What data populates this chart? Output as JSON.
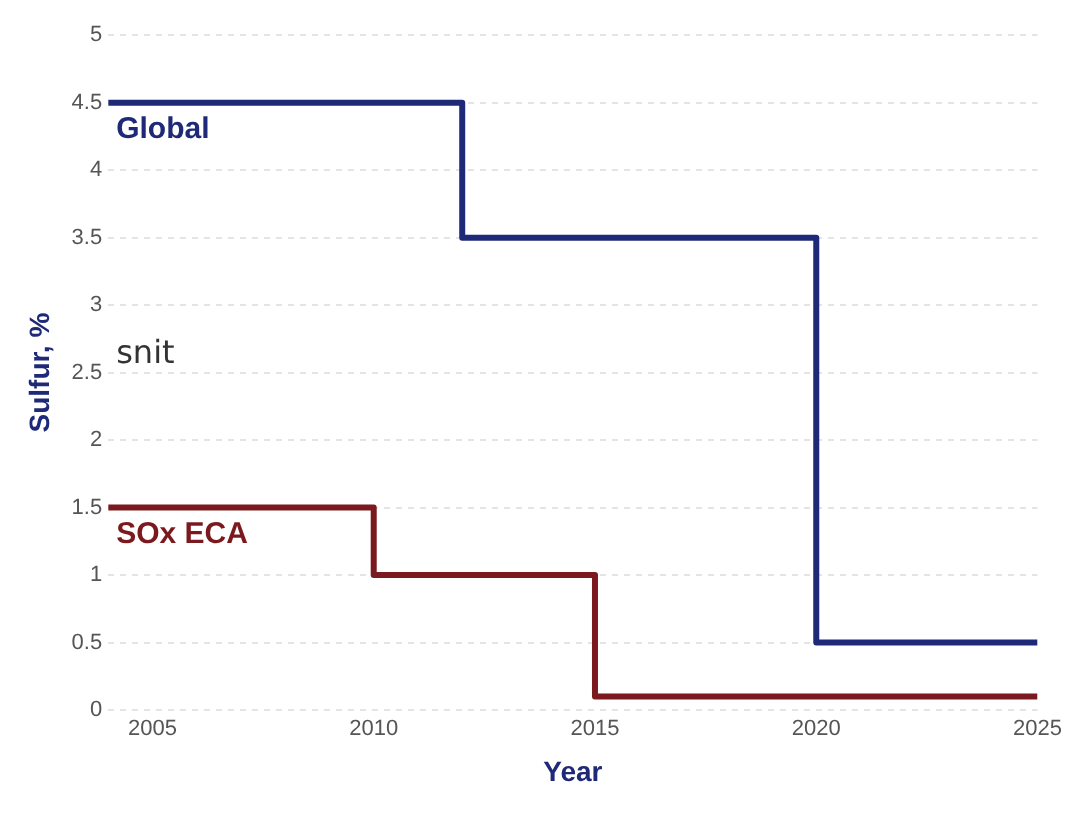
{
  "chart_data": {
    "type": "step",
    "xlabel": "Year",
    "ylabel": "Sulfur, %",
    "annotations": [
      "snit"
    ],
    "xlim": [
      2004,
      2025
    ],
    "xticks": [
      2005,
      2010,
      2015,
      2020,
      2025
    ],
    "ylim": [
      0,
      5
    ],
    "yticks": [
      0,
      0.5,
      1,
      1.5,
      2,
      2.5,
      3,
      3.5,
      4,
      4.5,
      5
    ],
    "grid": "y",
    "legend": false,
    "series": [
      {
        "name": "Global",
        "color": "#1e2a78",
        "x": [
          2004,
          2012,
          2020,
          2025
        ],
        "values": [
          4.5,
          3.5,
          0.5,
          0.5
        ]
      },
      {
        "name": "SOx ECA",
        "color": "#7a1a1e",
        "x": [
          2004,
          2010,
          2015,
          2025
        ],
        "values": [
          1.5,
          1,
          0.1,
          0.1
        ]
      }
    ]
  }
}
